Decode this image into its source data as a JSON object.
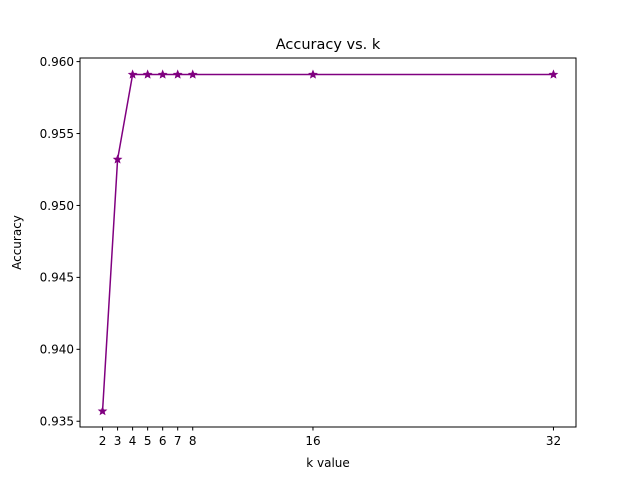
{
  "chart_data": {
    "type": "line",
    "title": "Accuracy vs. k",
    "xlabel": "k value",
    "ylabel": "Accuracy",
    "x": [
      2,
      3,
      4,
      5,
      6,
      7,
      8,
      16,
      32
    ],
    "y": [
      0.9357,
      0.9532,
      0.9591,
      0.9591,
      0.9591,
      0.9591,
      0.9591,
      0.9591,
      0.9591
    ],
    "xticks": [
      2,
      3,
      4,
      5,
      6,
      7,
      8,
      16,
      32
    ],
    "yticks": [
      0.935,
      0.94,
      0.945,
      0.95,
      0.955,
      0.96
    ],
    "ytick_labels": [
      "0.935",
      "0.940",
      "0.945",
      "0.950",
      "0.955",
      "0.960"
    ],
    "xlim": [
      0.5,
      33.5
    ],
    "ylim": [
      0.9346,
      0.96025
    ],
    "marker": "star",
    "line_color": "#800080",
    "grid": false,
    "legend": "none"
  }
}
